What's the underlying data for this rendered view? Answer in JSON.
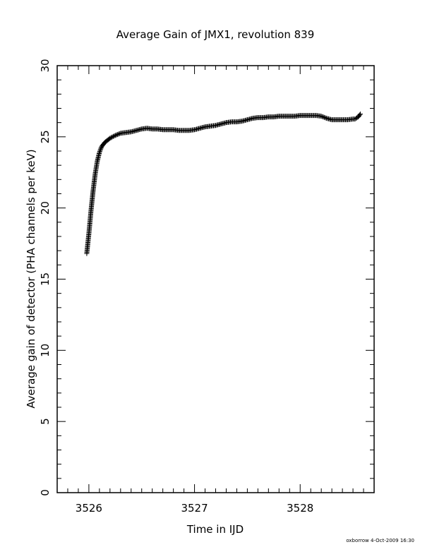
{
  "chart_data": {
    "type": "scatter",
    "title": "Average Gain of JMX1, revolution 839",
    "xlabel": "Time in IJD",
    "ylabel": "Average gain of detector (PHA channels per keV)",
    "xlim": [
      3525.7,
      3528.7
    ],
    "ylim": [
      0,
      30
    ],
    "x_ticks": [
      3526,
      3527,
      3528
    ],
    "x_tick_labels": [
      "3526",
      "3527",
      "3528"
    ],
    "y_ticks": [
      0,
      5,
      10,
      15,
      20,
      25,
      30
    ],
    "y_tick_labels": [
      "0",
      "5",
      "10",
      "15",
      "20",
      "25",
      "30"
    ],
    "marker": "plus",
    "grid": false,
    "footer": "oxborrow  4-Oct-2009 16:30",
    "series": [
      {
        "x": [
          3525.98,
          3526.0,
          3526.02,
          3526.04,
          3526.06,
          3526.08,
          3526.1,
          3526.12,
          3526.15,
          3526.2,
          3526.25,
          3526.3,
          3526.35,
          3526.4,
          3526.45,
          3526.5,
          3526.55,
          3526.6,
          3526.65,
          3526.7,
          3526.75,
          3526.8,
          3526.85,
          3526.9,
          3526.95,
          3527.0,
          3527.05,
          3527.1,
          3527.15,
          3527.2,
          3527.25,
          3527.3,
          3527.35,
          3527.4,
          3527.45,
          3527.5,
          3527.55,
          3527.6,
          3527.65,
          3527.7,
          3527.75,
          3527.8,
          3527.85,
          3527.9,
          3527.95,
          3528.0,
          3528.05,
          3528.1,
          3528.15,
          3528.2,
          3528.25,
          3528.3,
          3528.35,
          3528.4,
          3528.45,
          3528.5,
          3528.52,
          3528.55,
          3528.57
        ],
        "y": [
          16.8,
          18.2,
          19.8,
          21.2,
          22.4,
          23.3,
          23.9,
          24.3,
          24.6,
          24.9,
          25.1,
          25.25,
          25.3,
          25.35,
          25.45,
          25.55,
          25.6,
          25.55,
          25.55,
          25.5,
          25.5,
          25.5,
          25.45,
          25.45,
          25.45,
          25.5,
          25.6,
          25.7,
          25.75,
          25.8,
          25.9,
          26.0,
          26.05,
          26.05,
          26.1,
          26.2,
          26.3,
          26.35,
          26.35,
          26.4,
          26.4,
          26.45,
          26.45,
          26.45,
          26.45,
          26.5,
          26.5,
          26.5,
          26.5,
          26.45,
          26.3,
          26.2,
          26.2,
          26.2,
          26.2,
          26.25,
          26.25,
          26.4,
          26.6
        ]
      }
    ]
  }
}
